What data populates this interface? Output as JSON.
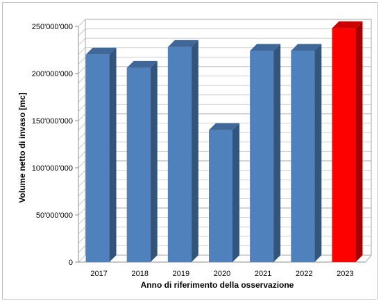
{
  "chart_data": {
    "type": "bar",
    "categories": [
      "2017",
      "2018",
      "2019",
      "2020",
      "2021",
      "2022",
      "2023"
    ],
    "values": [
      220000000,
      206000000,
      228000000,
      140000000,
      224000000,
      224000000,
      248000000
    ],
    "highlight_index": 6,
    "xlabel": "Anno di riferimento della osservazione",
    "ylabel": "Volume netto di invaso [mc]",
    "ylim": [
      0,
      250000000
    ],
    "ytick_labels": [
      "0",
      "50'000'000",
      "100'000'000",
      "150'000'000",
      "200'000'000",
      "250'000'000"
    ],
    "ytick_values": [
      0,
      50000000,
      100000000,
      150000000,
      200000000,
      250000000
    ],
    "grid": true,
    "legend": "none",
    "colors": {
      "bar": "#4f81bd",
      "bar_highlight": "#ff0000"
    }
  }
}
